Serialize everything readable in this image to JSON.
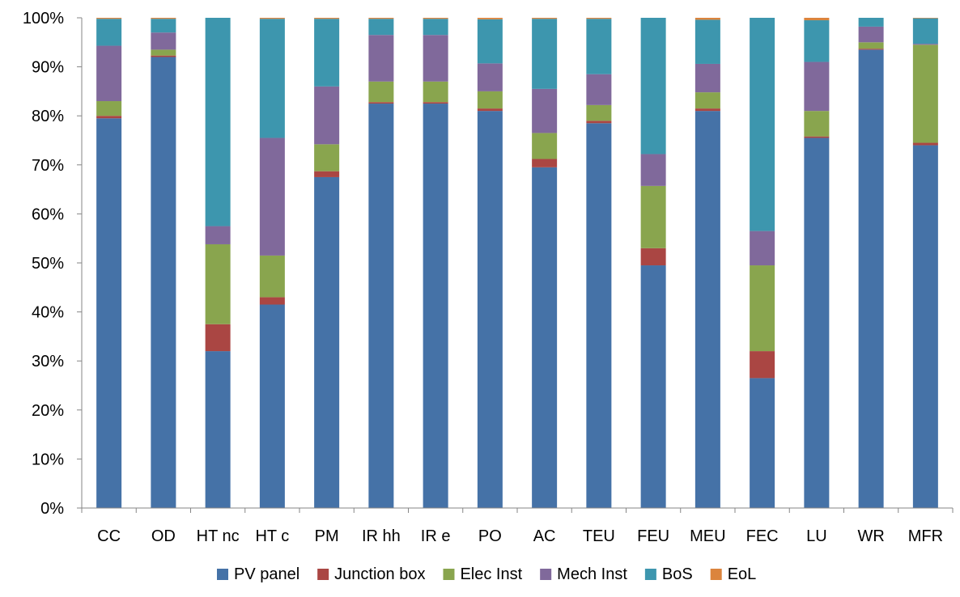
{
  "chart_data": {
    "type": "bar",
    "stacked": true,
    "percent": true,
    "categories": [
      "CC",
      "OD",
      "HT nc",
      "HT c",
      "PM",
      "IR hh",
      "IR e",
      "PO",
      "AC",
      "TEU",
      "FEU",
      "MEU",
      "FEC",
      "LU",
      "WR",
      "MFR"
    ],
    "yticks": [
      "0%",
      "10%",
      "20%",
      "30%",
      "40%",
      "50%",
      "60%",
      "70%",
      "80%",
      "90%",
      "100%"
    ],
    "ylim": [
      0,
      100
    ],
    "legend_position": "bottom",
    "series": [
      {
        "name": "PV panel",
        "color": "#4572A7",
        "values": [
          79.5,
          92.0,
          32.0,
          41.5,
          67.5,
          82.5,
          82.5,
          81.0,
          69.5,
          78.5,
          49.5,
          81.0,
          26.5,
          75.5,
          93.5,
          74.0
        ]
      },
      {
        "name": "Junction box",
        "color": "#AA4643",
        "values": [
          0.5,
          0.3,
          5.5,
          1.5,
          1.2,
          0.3,
          0.3,
          0.5,
          1.7,
          0.5,
          3.5,
          0.5,
          5.5,
          0.3,
          0.2,
          0.5
        ]
      },
      {
        "name": "Elec Inst",
        "color": "#89A54E",
        "values": [
          3.0,
          1.2,
          16.3,
          8.5,
          5.5,
          4.2,
          4.2,
          3.5,
          5.3,
          3.2,
          12.7,
          3.3,
          17.5,
          5.2,
          1.3,
          20.0
        ]
      },
      {
        "name": "Mech Inst",
        "color": "#80699B",
        "values": [
          11.3,
          3.5,
          3.7,
          24.0,
          11.8,
          9.5,
          9.5,
          5.7,
          9.0,
          6.3,
          6.5,
          5.8,
          7.0,
          10.0,
          3.2,
          0.2
        ]
      },
      {
        "name": "BoS",
        "color": "#3D96AE",
        "values": [
          5.5,
          2.8,
          42.5,
          24.3,
          13.8,
          3.3,
          3.3,
          9.0,
          14.3,
          11.3,
          27.8,
          9.0,
          43.5,
          8.5,
          1.8,
          5.2
        ]
      },
      {
        "name": "EoL",
        "color": "#DB843D",
        "values": [
          0.2,
          0.2,
          0.0,
          0.2,
          0.2,
          0.2,
          0.2,
          0.3,
          0.2,
          0.2,
          0.0,
          0.4,
          0.0,
          0.5,
          0.0,
          0.1
        ]
      }
    ]
  }
}
